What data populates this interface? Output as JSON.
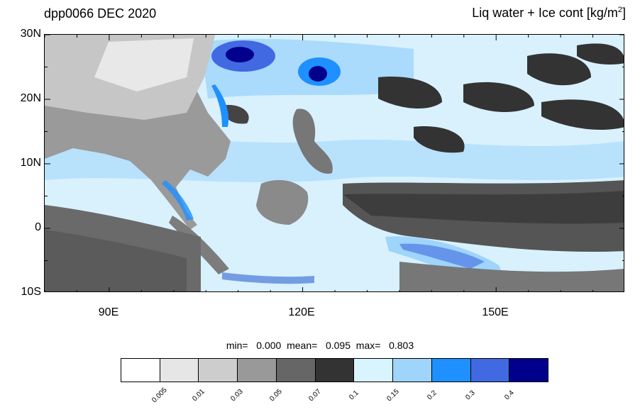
{
  "header": {
    "left_title": "dpp0066 DEC 2020",
    "right_title_main": "Liq water + Ice cont [kg/m",
    "right_title_sup": "2",
    "right_title_end": "]"
  },
  "axes": {
    "lat_ticks": [
      "30N",
      "20N",
      "10N",
      "0",
      "10S"
    ],
    "lon_ticks": [
      "90E",
      "120E",
      "150E"
    ]
  },
  "stats": {
    "min_label": "min=",
    "min_value": "0.000",
    "mean_label": "mean=",
    "mean_value": "0.095",
    "max_label": "max=",
    "max_value": "0.803"
  },
  "colorbar": {
    "colors": [
      "#ffffff",
      "#e6e6e6",
      "#cdcdcd",
      "#999999",
      "#666666",
      "#333333",
      "#d8f4fe",
      "#9fd4fb",
      "#1e90ff",
      "#4169e1",
      "#00008c"
    ],
    "labels": [
      "0.005",
      "0.01",
      "0.03",
      "0.05",
      "0.07",
      "0.1",
      "0.15",
      "0.2",
      "0.3",
      "0.4"
    ]
  },
  "map_colors": {
    "sea": "#d8f1fd",
    "land_light": "#c8c8c8",
    "land_mid": "#999999",
    "land_dark": "#5a5a5a",
    "cloud_dark": "#333333",
    "blue_light": "#9fd4fb",
    "blue_mid": "#1e90ff",
    "blue_deep": "#4169e1",
    "blue_navy": "#00008c"
  }
}
